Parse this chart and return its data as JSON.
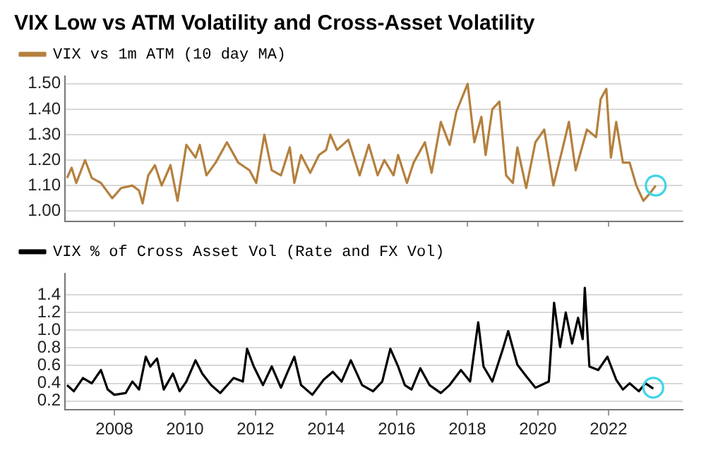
{
  "chart_data": [
    {
      "type": "line",
      "title": "VIX Low vs ATM Volatility and Cross-Asset Volatility",
      "xlim": [
        2006.6,
        2024.1
      ],
      "xticks": [
        2008,
        2010,
        2012,
        2014,
        2016,
        2018,
        2020,
        2022
      ],
      "ylim": [
        0.96,
        1.53
      ],
      "yticks": [
        {
          "value": 1,
          "label": "1.00"
        },
        {
          "value": 1.1,
          "label": "1.10"
        },
        {
          "value": 1.2,
          "label": "1.20"
        },
        {
          "value": 1.3,
          "label": "1.30"
        },
        {
          "value": 1.4,
          "label": "1.40"
        },
        {
          "value": 1.5,
          "label": "1.50"
        }
      ],
      "grid": "y",
      "legend": "top left",
      "tick_labels": "y",
      "series": [
        {
          "name": "VIX vs 1m ATM (10 day MA)",
          "color": "#b5803d",
          "x": [
            2006.66,
            2006.79,
            2006.92,
            2007.17,
            2007.36,
            2007.62,
            2007.94,
            2008.19,
            2008.51,
            2008.7,
            2008.8,
            2008.96,
            2009.15,
            2009.34,
            2009.59,
            2009.79,
            2010.04,
            2010.3,
            2010.42,
            2010.61,
            2010.87,
            2011.19,
            2011.51,
            2011.83,
            2012.02,
            2012.25,
            2012.46,
            2012.72,
            2012.97,
            2013.1,
            2013.29,
            2013.55,
            2013.8,
            2014.0,
            2014.12,
            2014.31,
            2014.63,
            2014.95,
            2015.21,
            2015.46,
            2015.65,
            2015.91,
            2016.04,
            2016.29,
            2016.48,
            2016.8,
            2016.99,
            2017.25,
            2017.5,
            2017.69,
            2018.01,
            2018.2,
            2018.4,
            2018.52,
            2018.71,
            2018.91,
            2019.1,
            2019.29,
            2019.42,
            2019.67,
            2019.93,
            2020.18,
            2020.44,
            2020.69,
            2020.88,
            2021.07,
            2021.39,
            2021.65,
            2021.78,
            2021.94,
            2022.07,
            2022.22,
            2022.41,
            2022.6,
            2022.79,
            2022.99,
            2023.18,
            2023.34
          ],
          "values": [
            1.13,
            1.17,
            1.11,
            1.2,
            1.13,
            1.11,
            1.05,
            1.09,
            1.1,
            1.08,
            1.03,
            1.14,
            1.18,
            1.1,
            1.18,
            1.04,
            1.26,
            1.21,
            1.26,
            1.14,
            1.19,
            1.27,
            1.19,
            1.16,
            1.11,
            1.3,
            1.16,
            1.14,
            1.25,
            1.11,
            1.22,
            1.15,
            1.22,
            1.24,
            1.3,
            1.24,
            1.28,
            1.14,
            1.26,
            1.14,
            1.2,
            1.14,
            1.22,
            1.11,
            1.19,
            1.27,
            1.15,
            1.35,
            1.26,
            1.39,
            1.5,
            1.27,
            1.37,
            1.22,
            1.4,
            1.43,
            1.14,
            1.11,
            1.25,
            1.09,
            1.27,
            1.32,
            1.1,
            1.24,
            1.35,
            1.16,
            1.32,
            1.29,
            1.44,
            1.48,
            1.21,
            1.35,
            1.19,
            1.19,
            1.1,
            1.04,
            1.07,
            1.1
          ]
        },
        {
          "type": "scatter",
          "color": "#40d4e4",
          "marker": "circle",
          "x": [
            2023.34
          ],
          "values": [
            1.1
          ]
        }
      ]
    },
    {
      "type": "line",
      "xlim": [
        2006.6,
        2024.1
      ],
      "xticks": [
        2008,
        2010,
        2012,
        2014,
        2016,
        2018,
        2020,
        2022
      ],
      "ylim": [
        0.1,
        1.64
      ],
      "yticks": [
        0.2,
        0.4,
        0.6,
        0.8,
        {
          "value": 1,
          "label": "1.0"
        },
        1.2,
        1.4
      ],
      "grid": "y",
      "legend": "top left",
      "series": [
        {
          "name": "VIX % of Cross Asset Vol (Rate and FX Vol)",
          "color": "#000000",
          "x": [
            2006.66,
            2006.85,
            2007.11,
            2007.36,
            2007.62,
            2007.81,
            2008.0,
            2008.32,
            2008.51,
            2008.7,
            2008.89,
            2009.02,
            2009.21,
            2009.4,
            2009.66,
            2009.85,
            2010.04,
            2010.3,
            2010.49,
            2010.74,
            2011.0,
            2011.38,
            2011.64,
            2011.76,
            2011.95,
            2012.21,
            2012.46,
            2012.72,
            2012.91,
            2013.1,
            2013.29,
            2013.61,
            2013.93,
            2014.19,
            2014.44,
            2014.7,
            2015.02,
            2015.33,
            2015.59,
            2015.82,
            2016.04,
            2016.23,
            2016.42,
            2016.67,
            2016.93,
            2017.25,
            2017.5,
            2017.82,
            2018.08,
            2018.31,
            2018.46,
            2018.71,
            2019.01,
            2019.16,
            2019.42,
            2019.67,
            2019.93,
            2020.31,
            2020.46,
            2020.63,
            2020.79,
            2020.97,
            2021.14,
            2021.27,
            2021.33,
            2021.46,
            2021.71,
            2021.97,
            2022.22,
            2022.41,
            2022.6,
            2022.86,
            2023.05,
            2023.27
          ],
          "values": [
            0.38,
            0.31,
            0.46,
            0.4,
            0.55,
            0.33,
            0.27,
            0.29,
            0.42,
            0.33,
            0.7,
            0.59,
            0.68,
            0.33,
            0.51,
            0.31,
            0.42,
            0.66,
            0.51,
            0.38,
            0.29,
            0.46,
            0.42,
            0.79,
            0.59,
            0.38,
            0.59,
            0.35,
            0.53,
            0.7,
            0.38,
            0.27,
            0.44,
            0.53,
            0.42,
            0.66,
            0.38,
            0.31,
            0.42,
            0.79,
            0.59,
            0.38,
            0.33,
            0.57,
            0.38,
            0.29,
            0.38,
            0.55,
            0.42,
            1.09,
            0.59,
            0.42,
            0.79,
            0.99,
            0.61,
            0.48,
            0.35,
            0.42,
            1.31,
            0.81,
            1.2,
            0.85,
            1.14,
            0.9,
            1.48,
            0.59,
            0.55,
            0.7,
            0.44,
            0.33,
            0.4,
            0.31,
            0.4,
            0.34
          ]
        },
        {
          "type": "scatter",
          "color": "#40d4e4",
          "marker": "circle",
          "x": [
            2023.27
          ],
          "values": [
            0.35
          ]
        }
      ]
    }
  ]
}
